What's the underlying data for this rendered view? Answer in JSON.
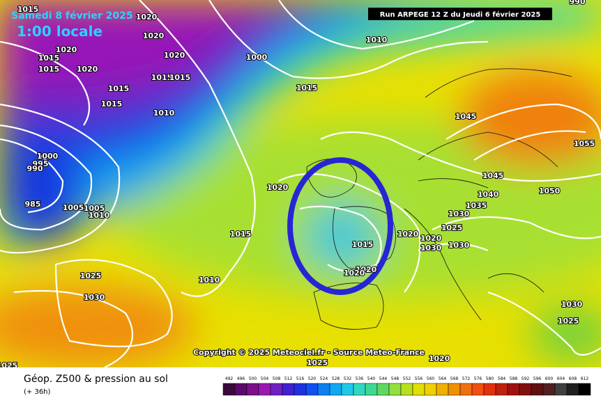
{
  "header": {
    "date": "Samedi 8 février 2025",
    "time": "1:00 locale",
    "run": "Run ARPEGE 12 Z du Jeudi 6 février 2025"
  },
  "copyright": "Copyright © 2025 Meteociel.fr - Source Meteo-France",
  "footer": {
    "title": "Géop. Z500 & pression au sol",
    "lead": "(+ 36h)"
  },
  "scale": [
    492,
    496,
    500,
    504,
    508,
    512,
    516,
    520,
    524,
    528,
    532,
    536,
    540,
    544,
    548,
    552,
    556,
    560,
    564,
    568,
    572,
    576,
    580,
    584,
    588,
    592,
    596,
    600,
    604,
    608,
    612
  ],
  "isobar_labels": [
    1015,
    1020,
    1015,
    1020,
    1020,
    1020,
    1015,
    1020,
    1015,
    1015,
    1015,
    1015,
    1010,
    1000,
    1015,
    1010,
    1045,
    1055,
    1020,
    1045,
    1040,
    1050,
    1035,
    1030,
    1025,
    1020,
    1020,
    1030,
    1030,
    1015,
    1020,
    1020,
    1015,
    1010,
    1025,
    1030,
    1000,
    995,
    990,
    985,
    1005,
    1010,
    1030,
    1025,
    1020,
    1025,
    1025,
    990,
    1005
  ]
}
